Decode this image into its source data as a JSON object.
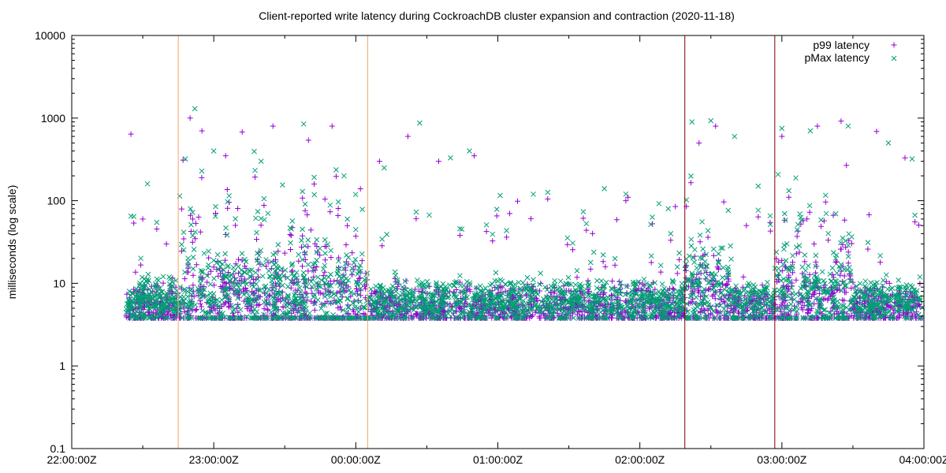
{
  "chart_data": {
    "type": "scatter",
    "title": "Client-reported write latency during CockroachDB cluster expansion and contraction (2020-11-18)",
    "xlabel": "",
    "ylabel": "milliseconds (log scale)",
    "x_type": "time",
    "x_range": [
      "2020-11-18T22:00:00Z",
      "2020-11-19T04:00:00Z"
    ],
    "x_ticks": [
      {
        "value": "2020-11-18T22:00:00Z",
        "label": "22:00:00Z"
      },
      {
        "value": "2020-11-18T23:00:00Z",
        "label": "23:00:00Z"
      },
      {
        "value": "2020-11-19T00:00:00Z",
        "label": "00:00:00Z"
      },
      {
        "value": "2020-11-19T01:00:00Z",
        "label": "01:00:00Z"
      },
      {
        "value": "2020-11-19T02:00:00Z",
        "label": "02:00:00Z"
      },
      {
        "value": "2020-11-19T03:00:00Z",
        "label": "03:00:00Z"
      },
      {
        "value": "2020-11-19T04:00:00Z",
        "label": "04:00:00Z"
      }
    ],
    "y_scale": "log",
    "ylim": [
      0.1,
      10000
    ],
    "y_ticks": [
      {
        "value": 0.1,
        "label": "0.1"
      },
      {
        "value": 1,
        "label": "1"
      },
      {
        "value": 10,
        "label": "10"
      },
      {
        "value": 100,
        "label": "100"
      },
      {
        "value": 1000,
        "label": "1000"
      },
      {
        "value": 10000,
        "label": "10000"
      }
    ],
    "grid": false,
    "legend_position": "top-right",
    "vertical_markers": [
      {
        "time": "2020-11-18T22:45:00Z",
        "color": "#f4a460"
      },
      {
        "time": "2020-11-19T00:05:00Z",
        "color": "#f4a460"
      },
      {
        "time": "2020-11-19T02:19:00Z",
        "color": "#800000"
      },
      {
        "time": "2020-11-19T02:57:00Z",
        "color": "#800000"
      }
    ],
    "series": [
      {
        "name": "p99 latency",
        "marker": "plus",
        "color": "#9400d3",
        "typical_range_ms": [
          4,
          10
        ],
        "points": [
          [
            "2020-11-18T22:25:00Z",
            640
          ],
          [
            "2020-11-18T22:30:00Z",
            60
          ],
          [
            "2020-11-18T22:40:00Z",
            30
          ],
          [
            "2020-11-18T22:47:00Z",
            310
          ],
          [
            "2020-11-18T22:50:00Z",
            1000
          ],
          [
            "2020-11-18T22:55:00Z",
            700
          ],
          [
            "2020-11-18T23:05:00Z",
            350
          ],
          [
            "2020-11-18T23:12:00Z",
            680
          ],
          [
            "2020-11-18T23:25:00Z",
            800
          ],
          [
            "2020-11-18T23:40:00Z",
            540
          ],
          [
            "2020-11-18T23:50:00Z",
            800
          ],
          [
            "2020-11-19T00:10:00Z",
            300
          ],
          [
            "2020-11-19T00:22:00Z",
            600
          ],
          [
            "2020-11-19T00:35:00Z",
            300
          ],
          [
            "2020-11-19T00:50:00Z",
            350
          ],
          [
            "2020-11-19T01:05:00Z",
            70
          ],
          [
            "2020-11-19T01:40:00Z",
            40
          ],
          [
            "2020-11-19T01:55:00Z",
            110
          ],
          [
            "2020-11-19T02:15:00Z",
            85
          ],
          [
            "2020-11-19T02:25:00Z",
            500
          ],
          [
            "2020-11-19T02:32:00Z",
            800
          ],
          [
            "2020-11-19T02:45:00Z",
            50
          ],
          [
            "2020-11-19T03:00:00Z",
            600
          ],
          [
            "2020-11-19T03:15:00Z",
            800
          ],
          [
            "2020-11-19T03:25:00Z",
            920
          ],
          [
            "2020-11-19T03:40:00Z",
            690
          ],
          [
            "2020-11-19T03:52:00Z",
            330
          ]
        ]
      },
      {
        "name": "pMax latency",
        "marker": "x",
        "color": "#009e73",
        "typical_range_ms": [
          5,
          20
        ],
        "points": [
          [
            "2020-11-18T22:25:00Z",
            65
          ],
          [
            "2020-11-18T22:32:00Z",
            160
          ],
          [
            "2020-11-18T22:48:00Z",
            320
          ],
          [
            "2020-11-18T22:52:00Z",
            1300
          ],
          [
            "2020-11-18T23:00:00Z",
            400
          ],
          [
            "2020-11-18T23:20:00Z",
            300
          ],
          [
            "2020-11-18T23:38:00Z",
            850
          ],
          [
            "2020-11-18T23:55:00Z",
            200
          ],
          [
            "2020-11-19T00:12:00Z",
            250
          ],
          [
            "2020-11-19T00:27:00Z",
            870
          ],
          [
            "2020-11-19T00:40:00Z",
            330
          ],
          [
            "2020-11-19T00:48:00Z",
            400
          ],
          [
            "2020-11-19T01:15:00Z",
            120
          ],
          [
            "2020-11-19T01:45:00Z",
            140
          ],
          [
            "2020-11-19T02:12:00Z",
            80
          ],
          [
            "2020-11-19T02:22:00Z",
            900
          ],
          [
            "2020-11-19T02:30:00Z",
            930
          ],
          [
            "2020-11-19T02:40:00Z",
            600
          ],
          [
            "2020-11-19T02:50:00Z",
            150
          ],
          [
            "2020-11-19T03:00:00Z",
            750
          ],
          [
            "2020-11-19T03:12:00Z",
            700
          ],
          [
            "2020-11-19T03:28:00Z",
            800
          ],
          [
            "2020-11-19T03:45:00Z",
            500
          ],
          [
            "2020-11-19T03:55:00Z",
            320
          ]
        ]
      }
    ]
  }
}
